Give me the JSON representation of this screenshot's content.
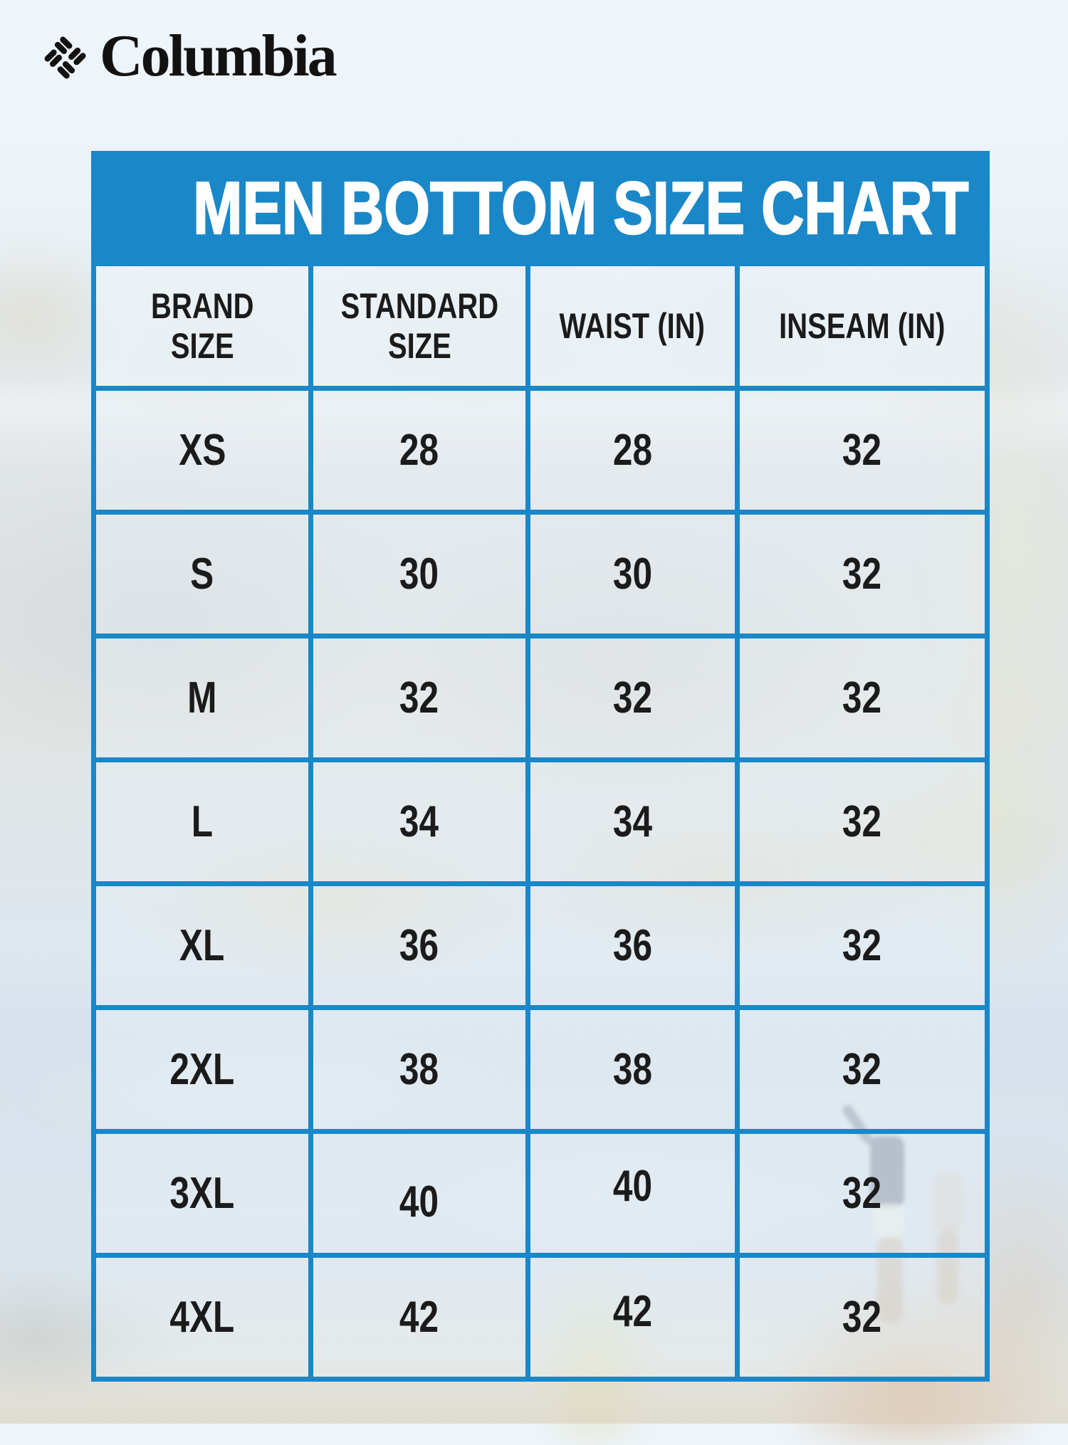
{
  "brand": {
    "name": "Columbia",
    "logo_icon": "columbia-diamond-logo"
  },
  "colors": {
    "accent_blue": "#1a87c8",
    "title_text": "#ffffff",
    "cell_text": "#1b1b1b",
    "page_background": "#edf4fa"
  },
  "chart_data": {
    "type": "table",
    "title": "MEN BOTTOM SIZE CHART",
    "columns": [
      "BRAND\nSIZE",
      "STANDARD\nSIZE",
      "WAIST (IN)",
      "INSEAM (IN)"
    ],
    "rows": [
      [
        "XS",
        "28",
        "28",
        "32"
      ],
      [
        "S",
        "30",
        "30",
        "32"
      ],
      [
        "M",
        "32",
        "32",
        "32"
      ],
      [
        "L",
        "34",
        "34",
        "32"
      ],
      [
        "XL",
        "36",
        "36",
        "32"
      ],
      [
        "2XL",
        "38",
        "38",
        "32"
      ],
      [
        "3XL",
        "40",
        "40",
        "32"
      ],
      [
        "4XL",
        "42",
        "42",
        "32"
      ]
    ]
  }
}
